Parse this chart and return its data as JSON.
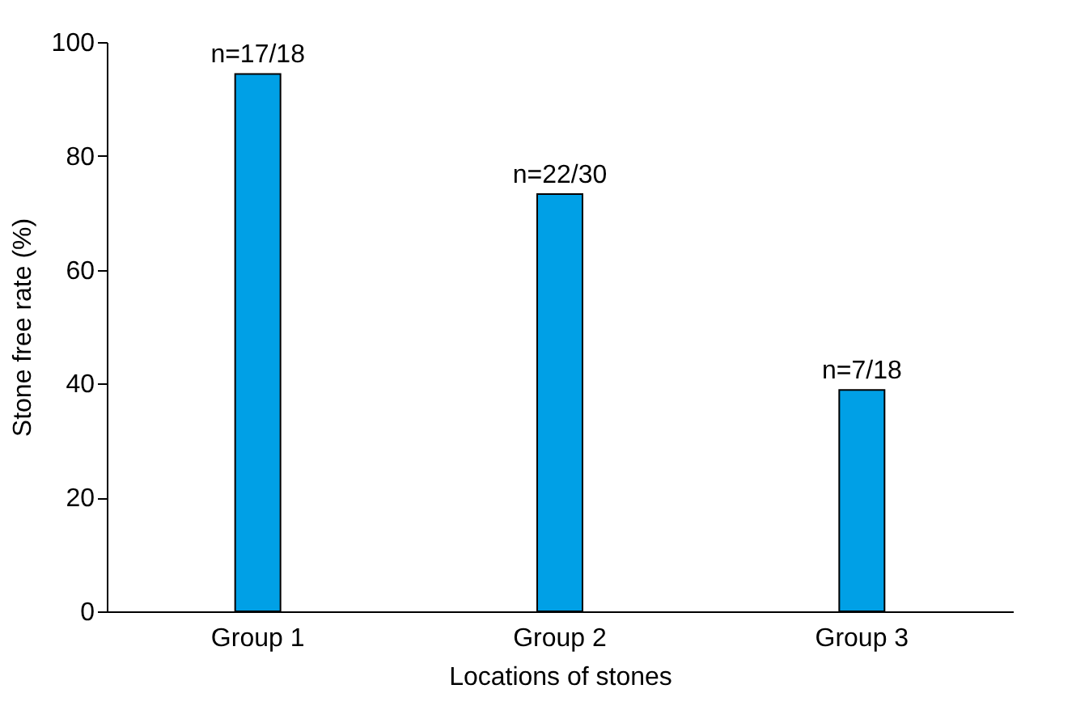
{
  "chart_data": {
    "type": "bar",
    "xlabel": "Locations of stones",
    "ylabel": "Stone free rate (%)",
    "categories": [
      "Group 1",
      "Group 2",
      "Group 3"
    ],
    "values": [
      94.4,
      73.3,
      38.9
    ],
    "value_labels": [
      "n=17/18",
      "n=22/30",
      "n=7/18"
    ],
    "color": "#00a0e6",
    "ylim": [
      0,
      100
    ],
    "yticks": [
      0,
      20,
      40,
      60,
      80,
      100
    ],
    "grid": false
  }
}
